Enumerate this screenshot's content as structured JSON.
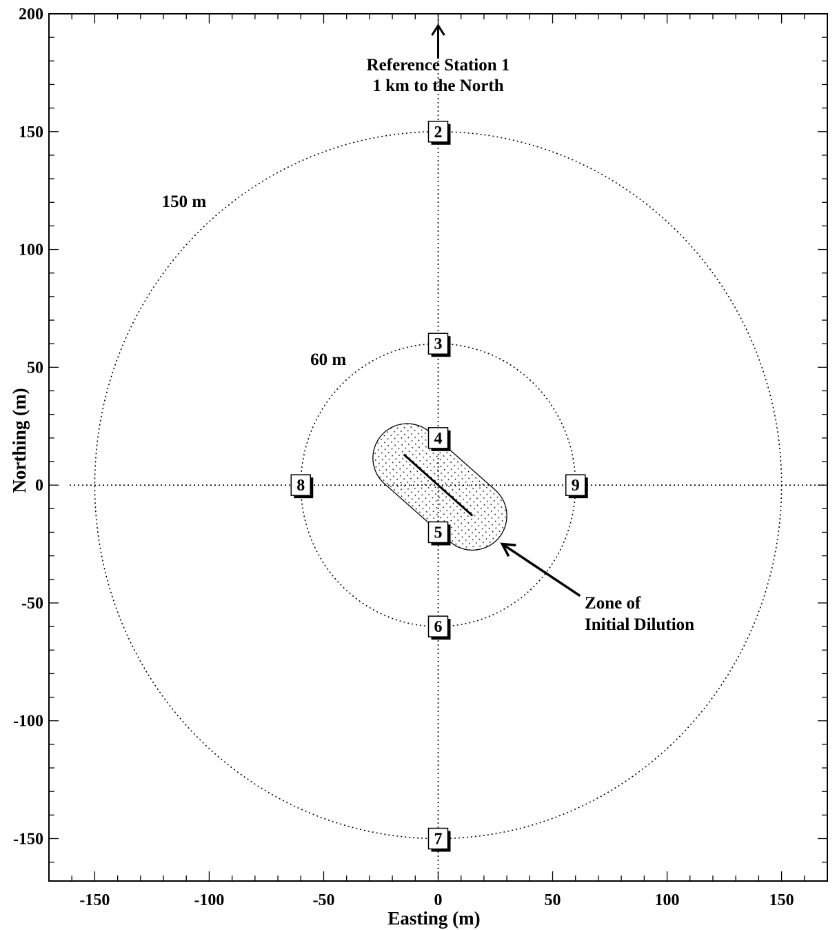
{
  "chart_data": {
    "type": "scatter",
    "xlabel": "Easting (m)",
    "ylabel": "Northing (m)",
    "xlim": [
      -170,
      170
    ],
    "ylim": [
      -168,
      200
    ],
    "x_ticks": [
      -150,
      -100,
      -50,
      0,
      50,
      100,
      150
    ],
    "y_ticks": [
      -150,
      -100,
      -50,
      0,
      50,
      100,
      150,
      200
    ],
    "x_tick_labels": [
      "-150",
      "-100",
      "-50",
      "0",
      "50",
      "100",
      "150"
    ],
    "y_tick_labels": [
      "-150",
      "-100",
      "-50",
      "0",
      "50",
      "100",
      "150",
      "200"
    ],
    "grid": false,
    "rings": [
      {
        "radius": 150,
        "label": "150 m",
        "label_x": -111,
        "label_y": 118
      },
      {
        "radius": 60,
        "label": "60 m",
        "label_x": -48,
        "label_y": 51
      }
    ],
    "stations": [
      {
        "label": "2",
        "x": 0,
        "y": 150
      },
      {
        "label": "3",
        "x": 0,
        "y": 60
      },
      {
        "label": "4",
        "x": 0,
        "y": 20
      },
      {
        "label": "5",
        "x": 0,
        "y": -20
      },
      {
        "label": "6",
        "x": 0,
        "y": -60
      },
      {
        "label": "7",
        "x": 0,
        "y": -150
      },
      {
        "label": "8",
        "x": -60,
        "y": 0
      },
      {
        "label": "9",
        "x": 60,
        "y": 0
      }
    ],
    "diffuser": {
      "x1": -15,
      "y1": 13,
      "x2": 15,
      "y2": -13
    },
    "zone": {
      "x1": -13.5,
      "y1": 11.5,
      "x2": 15,
      "y2": -13,
      "radius": 15
    },
    "annotations": {
      "reference_lines": [
        "Reference Station 1",
        "1 km to the North"
      ],
      "reference_arrow": {
        "x": 0,
        "y_from": 181,
        "y_to": 195
      },
      "zone_lines": [
        "Zone of",
        "Initial Dilution"
      ],
      "zone_arrow": {
        "x_from": 62,
        "y_from": -47,
        "x_to": 28,
        "y_to": -25
      },
      "zone_text_x": 64,
      "zone_text_y": -50
    }
  }
}
